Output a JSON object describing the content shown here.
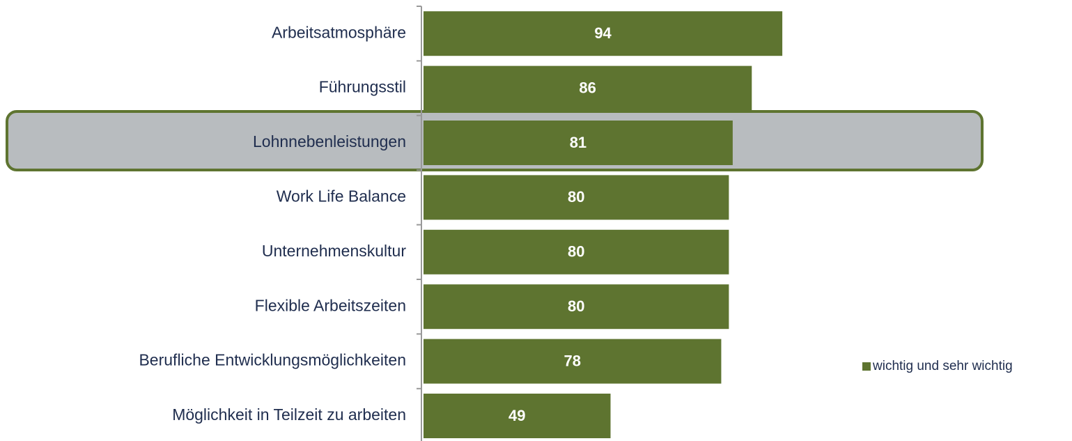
{
  "chart_data": {
    "type": "barh",
    "categories": [
      "Arbeitsatmosphäre",
      "Führungsstil",
      "Lohnnebenleistungen",
      "Work Life Balance",
      "Unternehmenskultur",
      "Flexible Arbeitszeiten",
      "Berufliche Entwicklungsmöglichkeiten",
      "Möglichkeit in Teilzeit zu arbeiten"
    ],
    "series": [
      {
        "name": "wichtig und sehr wichtig",
        "color": "#5e7430",
        "values": [
          94,
          86,
          81,
          80,
          80,
          80,
          78,
          49
        ]
      }
    ],
    "xlim": [
      0,
      100
    ],
    "legend": "right"
  }
}
